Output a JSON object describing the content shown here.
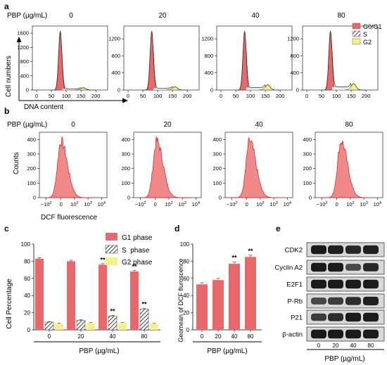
{
  "colors": {
    "g1": "#e8696b",
    "s": "#ffffff",
    "g2": "#f4f08a",
    "hist": "#f08a8a",
    "hist_edge": "#cc1f22",
    "bar_edge": "#555555",
    "blot_bg": "#d8d8d8",
    "band": "#141414"
  },
  "panel_a": {
    "letter": "a",
    "condition_label": "PBP (µg/mL)",
    "doses": [
      "0",
      "20",
      "40",
      "80"
    ],
    "ylabel": "Cell numbers",
    "xlabel": "DNA content",
    "legend": [
      "G0/G1",
      "S",
      "G2"
    ],
    "x_ticks": [
      "0",
      "50",
      "100",
      "150",
      "200"
    ],
    "y_ticks": [
      [
        "0",
        "400",
        "800",
        "1200",
        "1600"
      ],
      [
        "0",
        "400",
        "800",
        "1200"
      ],
      [
        "0",
        "400",
        "800",
        "1200"
      ],
      [
        "0",
        "400",
        "800",
        "1200"
      ]
    ]
  },
  "panel_b": {
    "letter": "b",
    "condition_label": "PBP (µg/mL)",
    "doses": [
      "0",
      "20",
      "40",
      "80"
    ],
    "ylabel": "Counts",
    "xlabel": "DCF fluorescence",
    "y_ticks": [
      "0",
      "100",
      "200",
      "300",
      "400"
    ]
  },
  "panel_c": {
    "letter": "c",
    "legend": [
      "G1 phase",
      "S  phase",
      "G2 phase"
    ],
    "xlabel": "PBP (µg/mL)",
    "sig_mark": "**"
  },
  "panel_d": {
    "letter": "d",
    "xlabel": "PBP (µg/mL)",
    "sig_mark": "**"
  },
  "panel_e": {
    "letter": "e",
    "proteins": [
      "CDK2",
      "Cyclin A2",
      "E2F1",
      "P-Rb",
      "P21",
      "β-actin"
    ],
    "doses": [
      "0",
      "20",
      "40",
      "80"
    ],
    "xlabel": "PBP (µg/mL)",
    "band_darkness": [
      [
        0.95,
        0.9,
        0.85,
        0.9
      ],
      [
        0.95,
        0.95,
        0.6,
        0.85
      ],
      [
        0.95,
        0.95,
        0.95,
        0.95
      ],
      [
        0.6,
        0.7,
        0.8,
        0.9
      ],
      [
        0.7,
        0.8,
        0.95,
        0.95
      ],
      [
        0.95,
        0.95,
        0.95,
        0.95
      ]
    ]
  },
  "chart_data": [
    {
      "type": "bar",
      "panel": "c",
      "ylabel": "Cell Percentage",
      "xlabel": "PBP (µg/mL)",
      "categories": [
        "0",
        "20",
        "40",
        "80"
      ],
      "ylim": [
        0,
        100
      ],
      "y_ticks": [
        0,
        20,
        40,
        60,
        80,
        100
      ],
      "series": [
        {
          "name": "G1 phase",
          "values": [
            83,
            80,
            76,
            68
          ]
        },
        {
          "name": "S  phase",
          "values": [
            9,
            11,
            16,
            24
          ]
        },
        {
          "name": "G2 phase",
          "values": [
            7,
            8,
            8,
            7
          ]
        }
      ],
      "significance": [
        {
          "series": "G1 phase",
          "category": "40",
          "mark": "**"
        },
        {
          "series": "G1 phase",
          "category": "80",
          "mark": "**"
        },
        {
          "series": "S  phase",
          "category": "40",
          "mark": "**"
        },
        {
          "series": "S  phase",
          "category": "80",
          "mark": "**"
        }
      ],
      "legend_position": "top-right"
    },
    {
      "type": "bar",
      "panel": "d",
      "ylabel": "Geomean of DCF fluroscence",
      "xlabel": "PBP (µg/mL)",
      "categories": [
        "0",
        "20",
        "40",
        "80"
      ],
      "values": [
        53,
        58,
        77,
        85
      ],
      "ylim": [
        0,
        100
      ],
      "y_ticks": [
        0,
        20,
        40,
        60,
        80,
        100
      ],
      "significance": [
        {
          "category": "40",
          "mark": "**"
        },
        {
          "category": "80",
          "mark": "**"
        }
      ]
    }
  ]
}
